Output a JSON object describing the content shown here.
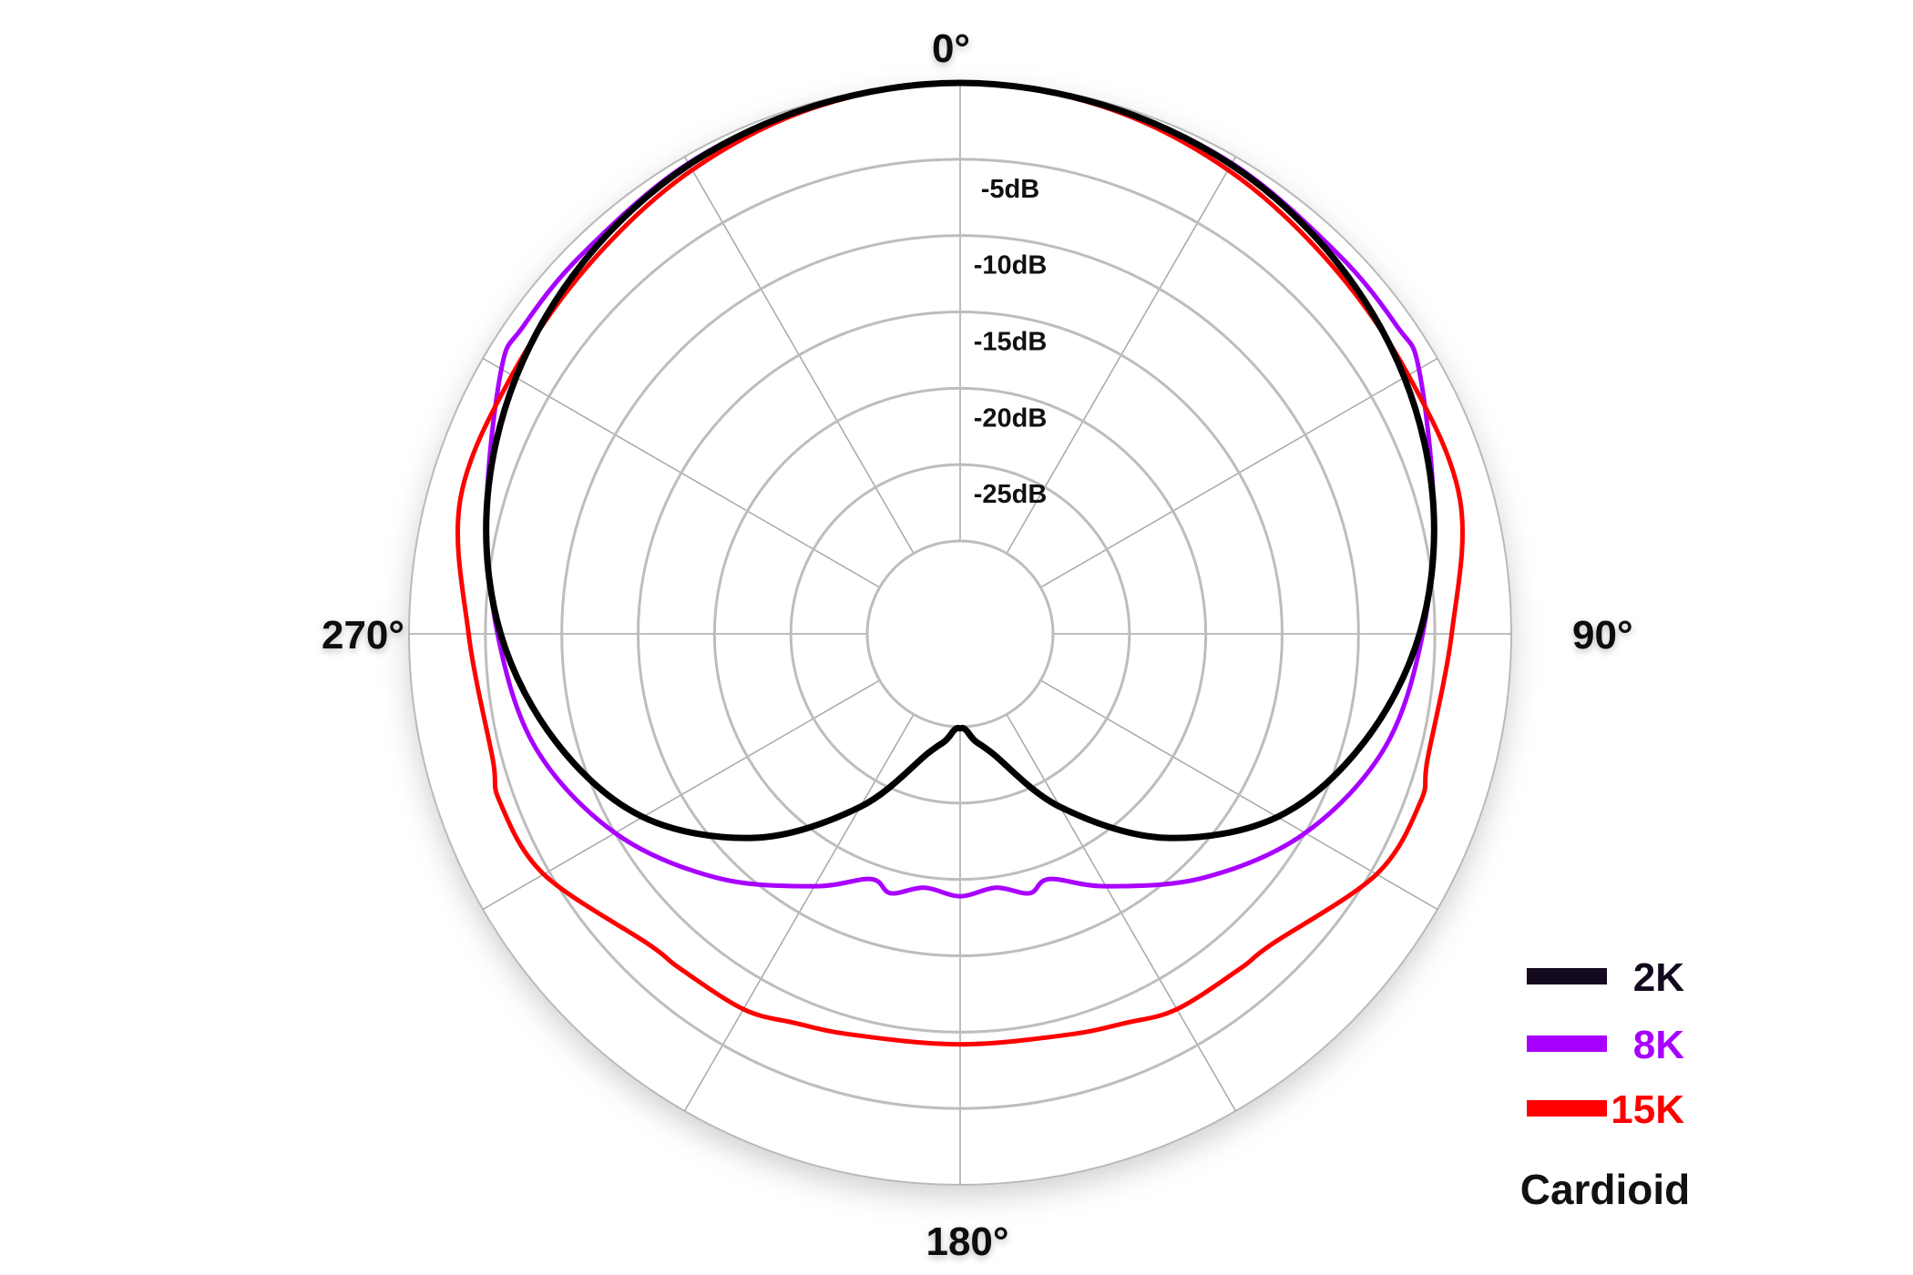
{
  "chart_data": {
    "type": "line",
    "projection": "polar",
    "angle_unit": "deg",
    "angle_direction": "clockwise",
    "zero_at": "top",
    "angle_labels": [
      "0°",
      "90°",
      "180°",
      "270°"
    ],
    "angle_label_values": [
      0,
      90,
      180,
      270
    ],
    "spoke_step_deg": 30,
    "radial_axis": {
      "unit": "dB",
      "min": -30,
      "max": 0,
      "ring_values": [
        -5,
        -10,
        -15,
        -20,
        -25
      ],
      "ring_labels": [
        "-5dB",
        "-10dB",
        "-15dB",
        "-20dB",
        "-25dB"
      ]
    },
    "legend_position": "bottom-right",
    "pattern_label": "Cardioid",
    "series": [
      {
        "name": "2K",
        "color": "#000000",
        "legend_color": "#140a1e",
        "theta": [
          0,
          15,
          30,
          45,
          60,
          75,
          90,
          105,
          120,
          135,
          150,
          165,
          172,
          176,
          178,
          180
        ],
        "values_db": [
          0,
          -0.2,
          -0.6,
          -1.4,
          -2.5,
          -4.0,
          -6.0,
          -8.7,
          -12.1,
          -17.2,
          -23.0,
          -28.0,
          -29.0,
          -29.7,
          -29.9,
          -29.9
        ]
      },
      {
        "name": "8K",
        "color": "#a800ff",
        "theta": [
          0,
          15,
          30,
          45,
          55,
          60,
          75,
          90,
          105,
          120,
          135,
          150,
          160,
          165,
          172,
          180
        ],
        "values_db": [
          0,
          -0.2,
          -0.5,
          -1.0,
          -1.1,
          -1.4,
          -4.0,
          -5.8,
          -7.3,
          -10.0,
          -13.5,
          -17.0,
          -19.0,
          -18.5,
          -19.3,
          -18.9
        ]
      },
      {
        "name": "15K",
        "color": "#ff0000",
        "theta": [
          0,
          15,
          30,
          45,
          60,
          75,
          90,
          105,
          110,
          120,
          135,
          140,
          150,
          157,
          165,
          180
        ],
        "values_db": [
          0,
          -0.3,
          -1.0,
          -1.8,
          -2.2,
          -2.2,
          -3.9,
          -4.4,
          -4.0,
          -4.6,
          -7.3,
          -7.5,
          -7.7,
          -8.4,
          -8.9,
          -9.2
        ]
      }
    ]
  }
}
